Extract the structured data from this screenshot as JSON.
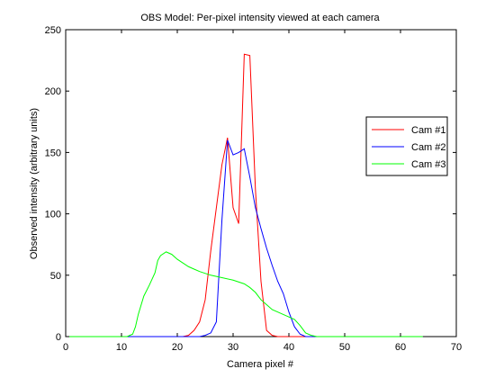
{
  "chart_data": {
    "type": "line",
    "title": "OBS Model: Per-pixel intensity viewed at each camera",
    "xlabel": "Camera pixel #",
    "ylabel": "Observed intensity (arbitrary units)",
    "xlim": [
      0,
      70
    ],
    "ylim": [
      0,
      250
    ],
    "xticks": [
      0,
      10,
      20,
      30,
      40,
      50,
      60,
      70
    ],
    "yticks": [
      0,
      50,
      100,
      150,
      200,
      250
    ],
    "grid": false,
    "legend_position": "right",
    "series": [
      {
        "name": "Cam #1",
        "color": "#ff0000",
        "x": [
          0,
          19,
          21,
          22,
          23,
          24,
          25,
          26,
          27,
          28,
          29,
          30,
          31,
          32,
          33,
          34,
          35,
          36,
          37,
          38,
          64
        ],
        "y": [
          0,
          0,
          0,
          1,
          5,
          12,
          30,
          70,
          105,
          140,
          162,
          105,
          92,
          230,
          229,
          120,
          45,
          5,
          1,
          0,
          0
        ]
      },
      {
        "name": "Cam #2",
        "color": "#0000ff",
        "x": [
          0,
          22,
          24,
          25,
          26,
          27,
          28,
          29,
          30,
          31,
          32,
          33,
          34,
          35,
          36,
          37,
          38,
          39,
          40,
          41,
          42,
          43,
          64
        ],
        "y": [
          0,
          0,
          0,
          1,
          3,
          12,
          95,
          160,
          148,
          150,
          153,
          130,
          105,
          88,
          72,
          58,
          45,
          35,
          20,
          8,
          2,
          0,
          0
        ]
      },
      {
        "name": "Cam #3",
        "color": "#00ff00",
        "x": [
          0,
          10,
          11,
          12,
          12.5,
          13,
          14,
          15,
          16,
          16.5,
          17,
          18,
          19,
          20,
          21,
          22,
          23,
          24,
          26,
          28,
          30,
          32,
          33,
          34,
          35,
          36,
          37,
          38,
          39,
          40,
          41,
          42,
          43,
          44,
          45,
          64
        ],
        "y": [
          0,
          0,
          0,
          2,
          8,
          18,
          33,
          42,
          52,
          62,
          66,
          69,
          67,
          63,
          60,
          57,
          55,
          53,
          50,
          48,
          46,
          43,
          40,
          36,
          30,
          26,
          22,
          20,
          18,
          16,
          14,
          9,
          3,
          1,
          0,
          0
        ]
      }
    ]
  }
}
